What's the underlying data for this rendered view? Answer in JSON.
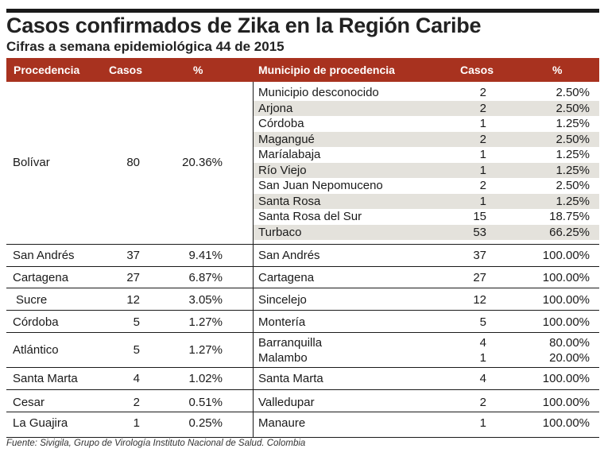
{
  "title": "Casos confirmados de Zika en la Región Caribe",
  "subtitle": "Cifras a semana epidemiológica 44 de 2015",
  "headers": {
    "procedencia": "Procedencia",
    "casos": "Casos",
    "pct": "%",
    "municipio": "Municipio de procedencia",
    "mcasos": "Casos",
    "mpct": "%"
  },
  "groups": [
    {
      "procedencia": "Bolívar",
      "casos": "80",
      "pct": "20.36%",
      "municipios": [
        {
          "nombre": "Municipio desconocido",
          "casos": "2",
          "pct": "2.50%"
        },
        {
          "nombre": "Arjona",
          "casos": "2",
          "pct": "2.50%"
        },
        {
          "nombre": "Córdoba",
          "casos": "1",
          "pct": "1.25%"
        },
        {
          "nombre": "Magangué",
          "casos": "2",
          "pct": "2.50%"
        },
        {
          "nombre": "Maríalabaja",
          "casos": "1",
          "pct": "1.25%"
        },
        {
          "nombre": "Río Viejo",
          "casos": "1",
          "pct": "1.25%"
        },
        {
          "nombre": "San Juan Nepomuceno",
          "casos": "2",
          "pct": "2.50%"
        },
        {
          "nombre": "Santa Rosa",
          "casos": "1",
          "pct": "1.25%"
        },
        {
          "nombre": "Santa Rosa del Sur",
          "casos": "15",
          "pct": "18.75%"
        },
        {
          "nombre": "Turbaco",
          "casos": "53",
          "pct": "66.25%"
        }
      ]
    },
    {
      "procedencia": "San Andrés",
      "casos": "37",
      "pct": "9.41%",
      "municipios": [
        {
          "nombre": "San Andrés",
          "casos": "37",
          "pct": "100.00%"
        }
      ]
    },
    {
      "procedencia": "Cartagena",
      "casos": "27",
      "pct": "6.87%",
      "municipios": [
        {
          "nombre": "Cartagena",
          "casos": "27",
          "pct": "100.00%"
        }
      ]
    },
    {
      "procedencia": "Sucre",
      "casos": "12",
      "pct": "3.05%",
      "municipios": [
        {
          "nombre": "Sincelejo",
          "casos": "12",
          "pct": "100.00%"
        }
      ]
    },
    {
      "procedencia": "Córdoba",
      "casos": "5",
      "pct": "1.27%",
      "municipios": [
        {
          "nombre": "Montería",
          "casos": "5",
          "pct": "100.00%"
        }
      ]
    },
    {
      "procedencia": "Atlántico",
      "casos": "5",
      "pct": "1.27%",
      "municipios": [
        {
          "nombre": "Barranquilla",
          "casos": "4",
          "pct": "80.00%"
        },
        {
          "nombre": "Malambo",
          "casos": "1",
          "pct": "20.00%"
        }
      ]
    },
    {
      "procedencia": "Santa Marta",
      "casos": "4",
      "pct": "1.02%",
      "municipios": [
        {
          "nombre": "Santa Marta",
          "casos": "4",
          "pct": "100.00%"
        }
      ]
    },
    {
      "procedencia": "Cesar",
      "casos": "2",
      "pct": "0.51%",
      "municipios": [
        {
          "nombre": "Valledupar",
          "casos": "2",
          "pct": "100.00%"
        }
      ]
    },
    {
      "procedencia": "La Guajira",
      "casos": "1",
      "pct": "0.25%",
      "municipios": [
        {
          "nombre": "Manaure",
          "casos": "1",
          "pct": "100.00%"
        }
      ]
    }
  ],
  "footer": "Fuente: Sivigila, Grupo de Virología Instituto Nacional de Salud. Colombia",
  "colors": {
    "header_bg": "#a8321f",
    "shade": "#e4e2dc",
    "rule": "#1a1a1a"
  }
}
